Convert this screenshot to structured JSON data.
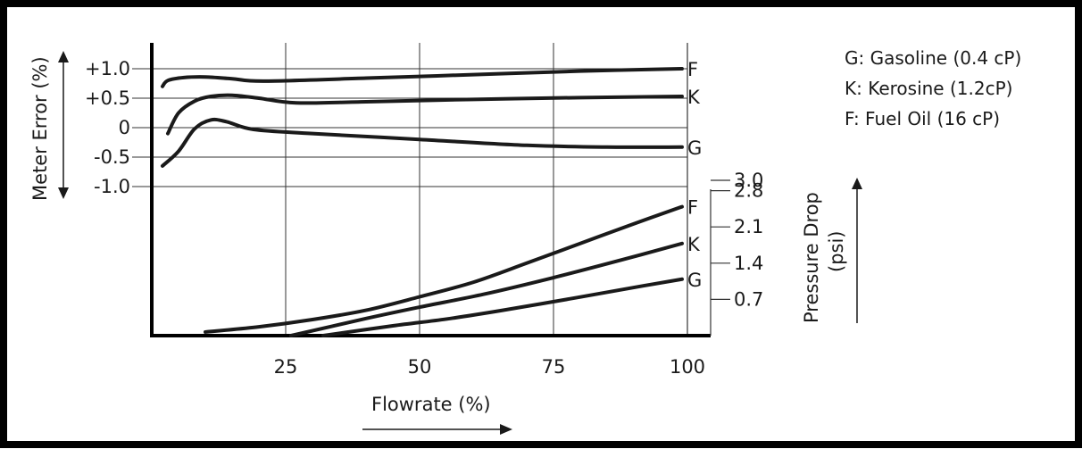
{
  "chart_data": {
    "type": "line",
    "x_axis": {
      "label": "Flowrate (%)",
      "ticks": [
        "25",
        "50",
        "75",
        "100"
      ],
      "range": [
        0,
        100
      ]
    },
    "meter_error_axis": {
      "label": "Meter Error (%)",
      "ticks": [
        "+1.0",
        "+0.5",
        "0",
        "-0.5",
        "-1.0"
      ],
      "range": [
        -1.0,
        1.0
      ]
    },
    "pressure_axis": {
      "label_line1": "Pressure Drop",
      "label_line2": "(psi)",
      "ticks": [
        "3.0",
        "2.8",
        "2.1",
        "1.4",
        "0.7"
      ],
      "range": [
        0,
        3.3
      ]
    },
    "grid": true,
    "legend": {
      "placement": "top-right",
      "entries": [
        "G: Gasoline (0.4 cP)",
        "K:  Kerosine (1.2cP)",
        "F:  Fuel Oil (16 cP)"
      ]
    },
    "meter_error_series": [
      {
        "name": "F",
        "x": [
          2,
          3,
          6,
          10,
          15,
          21,
          40,
          60,
          80,
          99
        ],
        "y": [
          0.7,
          0.8,
          0.85,
          0.86,
          0.83,
          0.79,
          0.84,
          0.9,
          0.96,
          1.0
        ]
      },
      {
        "name": "K",
        "x": [
          3,
          5,
          8,
          11,
          15,
          20,
          27,
          40,
          60,
          80,
          99
        ],
        "y": [
          -0.1,
          0.25,
          0.45,
          0.53,
          0.55,
          0.5,
          0.42,
          0.44,
          0.48,
          0.51,
          0.53
        ]
      },
      {
        "name": "G",
        "x": [
          2,
          5,
          8,
          11,
          14,
          19,
          30,
          50,
          70,
          85,
          99
        ],
        "y": [
          -0.65,
          -0.4,
          -0.02,
          0.13,
          0.1,
          -0.03,
          -0.1,
          -0.2,
          -0.3,
          -0.33,
          -0.33
        ]
      }
    ],
    "pressure_drop_series": [
      {
        "name": "F",
        "x": [
          10,
          20,
          30,
          40,
          50,
          60,
          70,
          80,
          90,
          99
        ],
        "y": [
          0.07,
          0.17,
          0.31,
          0.49,
          0.75,
          1.03,
          1.4,
          1.78,
          2.16,
          2.49
        ]
      },
      {
        "name": "K",
        "x": [
          26,
          40,
          50,
          62,
          75,
          88,
          99
        ],
        "y": [
          0.0,
          0.33,
          0.55,
          0.8,
          1.12,
          1.47,
          1.78
        ]
      },
      {
        "name": "G",
        "x": [
          32,
          45,
          55,
          65,
          78,
          90,
          99
        ],
        "y": [
          0.0,
          0.19,
          0.32,
          0.48,
          0.71,
          0.93,
          1.09
        ]
      }
    ]
  },
  "colors": {
    "curve": "#1a1a1a",
    "grid": "#333333",
    "background": "#ffffff",
    "border": "#000000"
  }
}
